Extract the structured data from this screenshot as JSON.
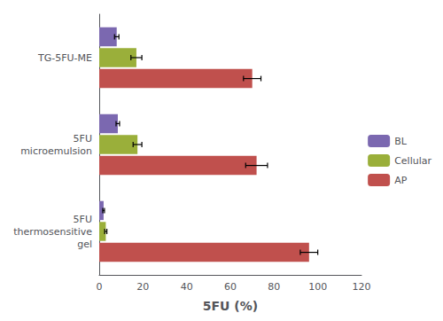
{
  "chart_data": {
    "type": "bar",
    "orientation": "horizontal",
    "categories": [
      "TG-5FU-ME",
      "5FU\nmicroemulsion",
      "5FU\nthermosensitive\ngel"
    ],
    "series": [
      {
        "name": "BL",
        "color": "#7b68b0",
        "values": [
          8.0,
          8.5,
          2.0
        ],
        "errors": [
          1.0,
          0.8,
          0.4
        ]
      },
      {
        "name": "Cellular",
        "color": "#9aaf3a",
        "values": [
          17.0,
          17.5,
          3.0
        ],
        "errors": [
          2.5,
          2.0,
          0.5
        ]
      },
      {
        "name": "AP",
        "color": "#c0504d",
        "values": [
          70.0,
          72.0,
          96.0
        ],
        "errors": [
          4.0,
          5.0,
          4.0
        ]
      }
    ],
    "xlabel": "5FU (%)",
    "xlim": [
      0,
      120
    ],
    "xticks": [
      0,
      20,
      40,
      60,
      80,
      100,
      120
    ],
    "legend": "right",
    "grid": false
  }
}
